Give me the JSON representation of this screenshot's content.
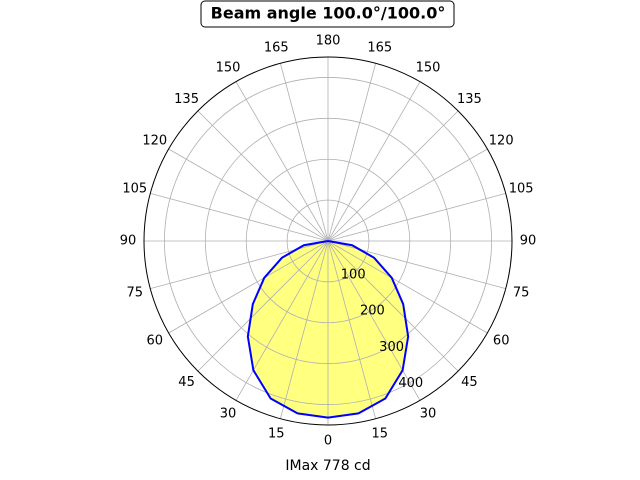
{
  "chart_data": {
    "type": "polar",
    "title": "Beam angle 100.0°/100.0°",
    "xlabel": "IMax 778 cd",
    "theta": [
      -90,
      -80,
      -70,
      -60,
      -50,
      -40,
      -30,
      -20,
      -10,
      0,
      10,
      20,
      30,
      40,
      50,
      60,
      70,
      80,
      90
    ],
    "series": [
      {
        "name": "Intensity",
        "color": "#0000ff",
        "fill": "#ffff80",
        "values": [
          0,
          60,
          120,
          180,
          240,
          305,
          365,
          410,
          428,
          432,
          428,
          410,
          365,
          305,
          240,
          180,
          120,
          60,
          0
        ]
      }
    ],
    "rlim": [
      0,
      450
    ],
    "rticks": [
      100,
      200,
      300,
      400
    ],
    "thetaticks": [
      0,
      15,
      30,
      45,
      60,
      75,
      90,
      105,
      120,
      135,
      150,
      165,
      180,
      {
        "value": 195,
        "label": "165"
      },
      {
        "value": 210,
        "label": "150"
      },
      {
        "value": 225,
        "label": "135"
      },
      {
        "value": 240,
        "label": "120"
      },
      {
        "value": 255,
        "label": "105"
      },
      {
        "value": 270,
        "label": "90"
      },
      {
        "value": 285,
        "label": "75"
      },
      {
        "value": 300,
        "label": "60"
      },
      {
        "value": 315,
        "label": "45"
      },
      {
        "value": 330,
        "label": "30"
      },
      {
        "value": 345,
        "label": "15"
      }
    ],
    "grid": true
  }
}
